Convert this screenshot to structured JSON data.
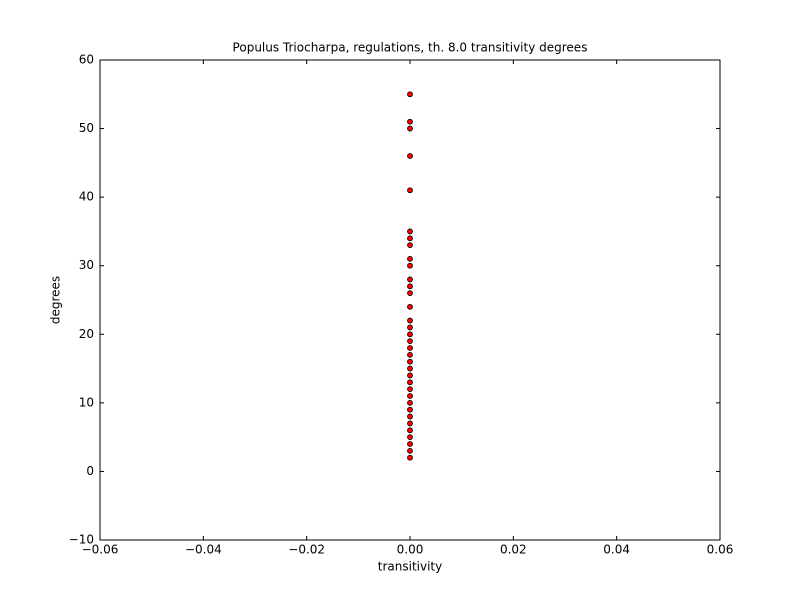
{
  "chart_data": {
    "type": "scatter",
    "title": "Populus Triocharpa, regulations, th. 8.0 transitivity degrees",
    "xlabel": "transitivity",
    "ylabel": "degrees",
    "x": [
      0,
      0,
      0,
      0,
      0,
      0,
      0,
      0,
      0,
      0,
      0,
      0,
      0,
      0,
      0,
      0,
      0,
      0,
      0,
      0,
      0,
      0,
      0,
      0,
      0,
      0,
      0,
      0,
      0,
      0,
      0,
      0,
      0,
      0,
      0
    ],
    "values": [
      55,
      51,
      50,
      46,
      41,
      35,
      34,
      33,
      31,
      30,
      28,
      27,
      26,
      24,
      22,
      21,
      20,
      19,
      18,
      17,
      16,
      15,
      14,
      13,
      12,
      11,
      10,
      9,
      8,
      7,
      6,
      5,
      4,
      3,
      2
    ],
    "color": "#ff0000",
    "xlim": [
      -0.06,
      0.06
    ],
    "xticks": [
      {
        "value": -0.06,
        "label": "−0.06"
      },
      {
        "value": -0.04,
        "label": "−0.04"
      },
      {
        "value": -0.02,
        "label": "−0.02"
      },
      {
        "value": 0,
        "label": "0.00"
      },
      0.02,
      0.04,
      0.06
    ],
    "ylim": [
      -10,
      60
    ],
    "yticks": [
      {
        "value": -10,
        "label": "−10"
      },
      0,
      10,
      20,
      30,
      40,
      50,
      60
    ],
    "grid": false
  }
}
